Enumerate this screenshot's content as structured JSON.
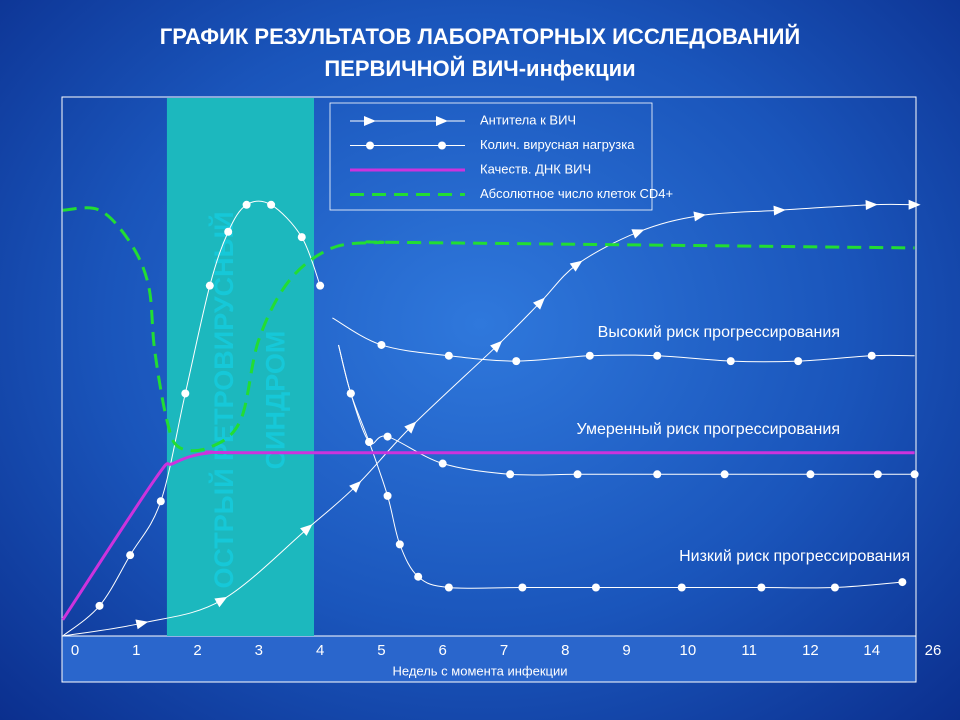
{
  "chart_data": {
    "type": "line",
    "title": [
      "ГРАФИК РЕЗУЛЬТАТОВ ЛАБОРАТОРНЫХ ИССЛЕДОВАНИЙ",
      "ПЕРВИЧНОЙ ВИЧ-инфекции"
    ],
    "x_label": "Недель с момента инфекции",
    "categories": [
      "0",
      "1",
      "2",
      "3",
      "4",
      "5",
      "6",
      "7",
      "8",
      "9",
      "10",
      "11",
      "12",
      "14",
      "26"
    ],
    "ylim": [
      0,
      100
    ],
    "band": {
      "x": [
        1.5,
        3.9
      ],
      "label": [
        "ОСТРЫЙ РЕТРОВИРУСНЫЙ",
        "СИНДРОМ"
      ],
      "color": "#1cb8be"
    },
    "series": [
      {
        "name": "Антитела к ВИЧ",
        "color": "#ffffff",
        "marker": "triangle",
        "x": [
          -0.2,
          1.1,
          2.4,
          3.8,
          4.6,
          5.5,
          6.9,
          7.6,
          8.2,
          9.2,
          10.2,
          11.5,
          13.0,
          13.7
        ],
        "values": [
          0,
          2.4,
          6.7,
          20,
          28,
          39,
          54,
          62,
          69,
          75,
          78,
          79,
          80,
          80
        ]
      },
      {
        "name": "Колич. вирусная нагрузка",
        "color": "#ffffff",
        "marker": "circle",
        "x": [
          -0.2,
          0.4,
          0.9,
          1.4,
          1.8,
          2.2,
          2.5,
          2.8,
          3.2,
          3.7,
          4.0
        ],
        "values": [
          0,
          5.6,
          15,
          25,
          45,
          65,
          75,
          80,
          80,
          74,
          65
        ],
        "branches": [
          {
            "label": "Высокий риск прогрессирования",
            "x": [
              4.2,
              5.0,
              6.1,
              7.2,
              8.4,
              9.5,
              10.7,
              11.8,
              13.0,
              13.7
            ],
            "values": [
              59,
              54,
              52,
              51,
              52,
              52,
              51,
              51,
              52,
              52
            ]
          },
          {
            "label": "Умеренный риск прогрессирования",
            "x": [
              4.3,
              4.5,
              4.8,
              5.1,
              6.0,
              7.1,
              8.2,
              9.5,
              10.6,
              12.0,
              13.1,
              13.7
            ],
            "values": [
              54,
              45,
              36,
              37,
              32,
              30,
              30,
              30,
              30,
              30,
              30,
              30
            ]
          },
          {
            "label": "Низкий риск прогрессирования",
            "x": [
              4.3,
              4.5,
              4.8,
              5.1,
              5.3,
              5.6,
              6.1,
              7.3,
              8.5,
              9.9,
              11.2,
              12.4,
              13.5
            ],
            "values": [
              54,
              45,
              36,
              26,
              17,
              11,
              9,
              9,
              9,
              9,
              9,
              9,
              10
            ]
          }
        ]
      },
      {
        "name": "Качеств. ДНК ВИЧ",
        "color": "#cc33dd",
        "x": [
          -0.2,
          1.3,
          1.6,
          2.2,
          3.3,
          13.7
        ],
        "values": [
          3,
          29,
          32,
          34,
          34,
          34
        ]
      },
      {
        "name": "Абсолютное число клеток CD4+",
        "color": "#22dd33",
        "dash": true,
        "x": [
          -0.2,
          0.4,
          0.9,
          1.2,
          1.3,
          1.5,
          1.7,
          2.2,
          2.7,
          3.0,
          3.5,
          4.2,
          5.0,
          5.5,
          13.7
        ],
        "values": [
          79,
          79,
          73,
          65,
          53,
          40,
          35,
          35,
          40,
          55,
          66,
          72,
          73,
          73,
          72
        ]
      }
    ]
  }
}
